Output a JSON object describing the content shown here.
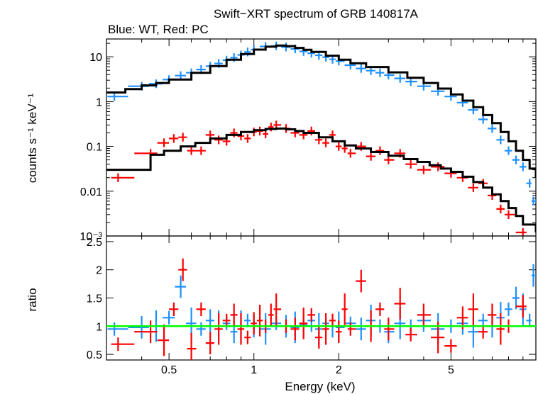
{
  "chart_data": [
    {
      "type": "scatter",
      "title": "Swift−XRT spectrum of GRB 140817A",
      "subtitle": "Blue: WT, Red: PC",
      "xlabel": "",
      "ylabel": "counts s⁻¹ keV⁻¹",
      "xscale": "log",
      "yscale": "log",
      "xlim": [
        0.3,
        10
      ],
      "ylim": [
        0.001,
        25
      ],
      "y_ticks": [
        "10",
        "1",
        "0.1",
        "0.01",
        "10⁻³"
      ],
      "grid": false,
      "series": [
        {
          "color": "#1E90FF",
          "x": [
            0.32,
            0.4,
            0.45,
            0.5,
            0.55,
            0.6,
            0.65,
            0.7,
            0.75,
            0.8,
            0.85,
            0.9,
            0.95,
            1.0,
            1.1,
            1.2,
            1.3,
            1.4,
            1.5,
            1.6,
            1.7,
            1.8,
            1.9,
            2.0,
            2.2,
            2.4,
            2.6,
            2.8,
            3.0,
            3.3,
            3.6,
            4.0,
            4.5,
            5.0,
            5.5,
            6.0,
            6.5,
            7.0,
            7.5,
            8.0,
            8.5,
            9.0,
            9.5,
            9.8
          ],
          "y": [
            1.3,
            2.2,
            2.5,
            3.1,
            3.8,
            4.4,
            5.2,
            6.2,
            7.1,
            8.4,
            9.6,
            11,
            12.8,
            14.5,
            17,
            17.5,
            16.5,
            15,
            13.2,
            12,
            10.8,
            9.8,
            8.8,
            8.0,
            6.5,
            5.5,
            4.9,
            4.4,
            3.9,
            3.3,
            2.8,
            2.2,
            1.7,
            1.3,
            0.95,
            0.65,
            0.4,
            0.25,
            0.14,
            0.08,
            0.05,
            0.035,
            0.015,
            0.006
          ]
        },
        {
          "color": "#FF0000",
          "x": [
            0.33,
            0.43,
            0.48,
            0.52,
            0.56,
            0.6,
            0.65,
            0.7,
            0.75,
            0.8,
            0.85,
            0.9,
            0.95,
            1.0,
            1.05,
            1.1,
            1.15,
            1.2,
            1.3,
            1.4,
            1.5,
            1.6,
            1.7,
            1.8,
            1.9,
            2.0,
            2.1,
            2.2,
            2.4,
            2.6,
            2.8,
            3.0,
            3.3,
            3.6,
            4.0,
            4.5,
            5.0,
            5.5,
            6.0,
            6.5,
            7.0,
            7.5,
            8.0,
            9.0
          ],
          "y": [
            0.02,
            0.07,
            0.12,
            0.15,
            0.16,
            0.08,
            0.08,
            0.18,
            0.14,
            0.13,
            0.2,
            0.17,
            0.15,
            0.21,
            0.22,
            0.19,
            0.27,
            0.3,
            0.25,
            0.2,
            0.18,
            0.22,
            0.14,
            0.12,
            0.18,
            0.1,
            0.09,
            0.07,
            0.1,
            0.06,
            0.08,
            0.05,
            0.07,
            0.04,
            0.03,
            0.035,
            0.025,
            0.02,
            0.012,
            0.015,
            0.008,
            0.004,
            0.003,
            0.0012
          ]
        }
      ],
      "models": [
        {
          "color": "#000000",
          "x": [
            0.3,
            0.35,
            0.4,
            0.45,
            0.5,
            0.6,
            0.7,
            0.8,
            0.9,
            1.0,
            1.1,
            1.2,
            1.3,
            1.4,
            1.5,
            1.6,
            1.8,
            2.0,
            2.2,
            2.5,
            3.0,
            3.5,
            4.0,
            4.5,
            5.0,
            5.5,
            6.0,
            6.5,
            7.0,
            7.5,
            8.0,
            8.5,
            9.0,
            9.5,
            10.0
          ],
          "y": [
            1.6,
            1.9,
            2.3,
            2.6,
            3.1,
            4.4,
            6.2,
            8.6,
            11.5,
            14.5,
            16.8,
            17.8,
            17.3,
            15.8,
            14.3,
            12.9,
            10.6,
            8.6,
            7.2,
            5.9,
            4.5,
            3.4,
            2.6,
            1.95,
            1.45,
            1.05,
            0.75,
            0.5,
            0.33,
            0.21,
            0.13,
            0.08,
            0.05,
            0.032,
            0.02
          ]
        },
        {
          "color": "#000000",
          "x": [
            0.3,
            0.43,
            0.48,
            0.55,
            0.62,
            0.7,
            0.8,
            0.9,
            1.0,
            1.1,
            1.2,
            1.3,
            1.4,
            1.5,
            1.7,
            1.9,
            2.1,
            2.3,
            2.6,
            3.0,
            3.4,
            3.8,
            4.2,
            4.6,
            5.0,
            5.5,
            6.0,
            6.5,
            7.0,
            7.5,
            8.0,
            8.5,
            9.0,
            10.0
          ],
          "y": [
            0.03,
            0.065,
            0.08,
            0.1,
            0.12,
            0.15,
            0.18,
            0.21,
            0.23,
            0.245,
            0.25,
            0.24,
            0.22,
            0.2,
            0.16,
            0.13,
            0.105,
            0.09,
            0.075,
            0.062,
            0.052,
            0.045,
            0.038,
            0.032,
            0.027,
            0.021,
            0.016,
            0.012,
            0.0085,
            0.006,
            0.0042,
            0.0028,
            0.0018,
            0.0012
          ]
        }
      ]
    },
    {
      "type": "scatter",
      "title": "",
      "xlabel": "Energy (keV)",
      "ylabel": "ratio",
      "xscale": "log",
      "xlim": [
        0.3,
        10
      ],
      "ylim": [
        0.4,
        2.6
      ],
      "x_ticks": [
        "0.5",
        "1",
        "2",
        "5"
      ],
      "y_ticks": [
        "0.5",
        "1",
        "1.5",
        "2",
        "2.5"
      ],
      "grid": false,
      "reference_line": {
        "y": 1,
        "color": "#00FF00"
      },
      "series": [
        {
          "color": "#1E90FF",
          "x": [
            0.32,
            0.4,
            0.45,
            0.5,
            0.55,
            0.6,
            0.65,
            0.7,
            0.75,
            0.8,
            0.85,
            0.9,
            0.95,
            1.0,
            1.1,
            1.2,
            1.3,
            1.4,
            1.5,
            1.6,
            1.7,
            1.8,
            1.9,
            2.0,
            2.2,
            2.4,
            2.6,
            2.8,
            3.0,
            3.3,
            3.6,
            4.0,
            4.5,
            5.0,
            5.5,
            6.0,
            6.5,
            7.0,
            7.5,
            8.0,
            8.5,
            9.0,
            9.5,
            9.8
          ],
          "y": [
            0.95,
            0.98,
            1.0,
            1.15,
            1.7,
            1.05,
            0.95,
            1.1,
            1.0,
            1.05,
            0.9,
            1.0,
            1.1,
            1.0,
            0.95,
            1.05,
            1.0,
            0.98,
            1.02,
            1.1,
            0.95,
            1.05,
            1.0,
            0.98,
            1.05,
            0.95,
            1.1,
            1.0,
            0.9,
            1.05,
            1.0,
            1.1,
            0.95,
            1.0,
            1.05,
            0.9,
            1.1,
            1.0,
            1.15,
            1.3,
            1.5,
            1.3,
            1.1,
            1.9
          ]
        },
        {
          "color": "#FF0000",
          "x": [
            0.33,
            0.43,
            0.48,
            0.52,
            0.56,
            0.6,
            0.65,
            0.7,
            0.75,
            0.8,
            0.85,
            0.9,
            0.95,
            1.0,
            1.05,
            1.1,
            1.15,
            1.2,
            1.3,
            1.4,
            1.5,
            1.6,
            1.7,
            1.8,
            1.9,
            2.0,
            2.1,
            2.2,
            2.4,
            2.6,
            2.8,
            3.0,
            3.3,
            3.6,
            4.0,
            4.5,
            5.0,
            5.5,
            6.0,
            6.5,
            7.0,
            7.5,
            8.0,
            9.0
          ],
          "y": [
            0.68,
            0.9,
            0.75,
            1.3,
            2.0,
            0.6,
            1.3,
            0.7,
            0.95,
            1.1,
            1.2,
            0.95,
            0.8,
            1.05,
            1.1,
            1.0,
            1.2,
            1.3,
            1.0,
            0.95,
            1.05,
            1.2,
            0.8,
            0.95,
            1.1,
            0.9,
            1.3,
            0.95,
            1.8,
            1.0,
            1.3,
            0.95,
            1.4,
            0.85,
            1.2,
            0.8,
            0.65,
            1.15,
            1.3,
            0.9,
            1.2,
            0.95,
            1.0,
            1.35
          ]
        }
      ]
    }
  ]
}
